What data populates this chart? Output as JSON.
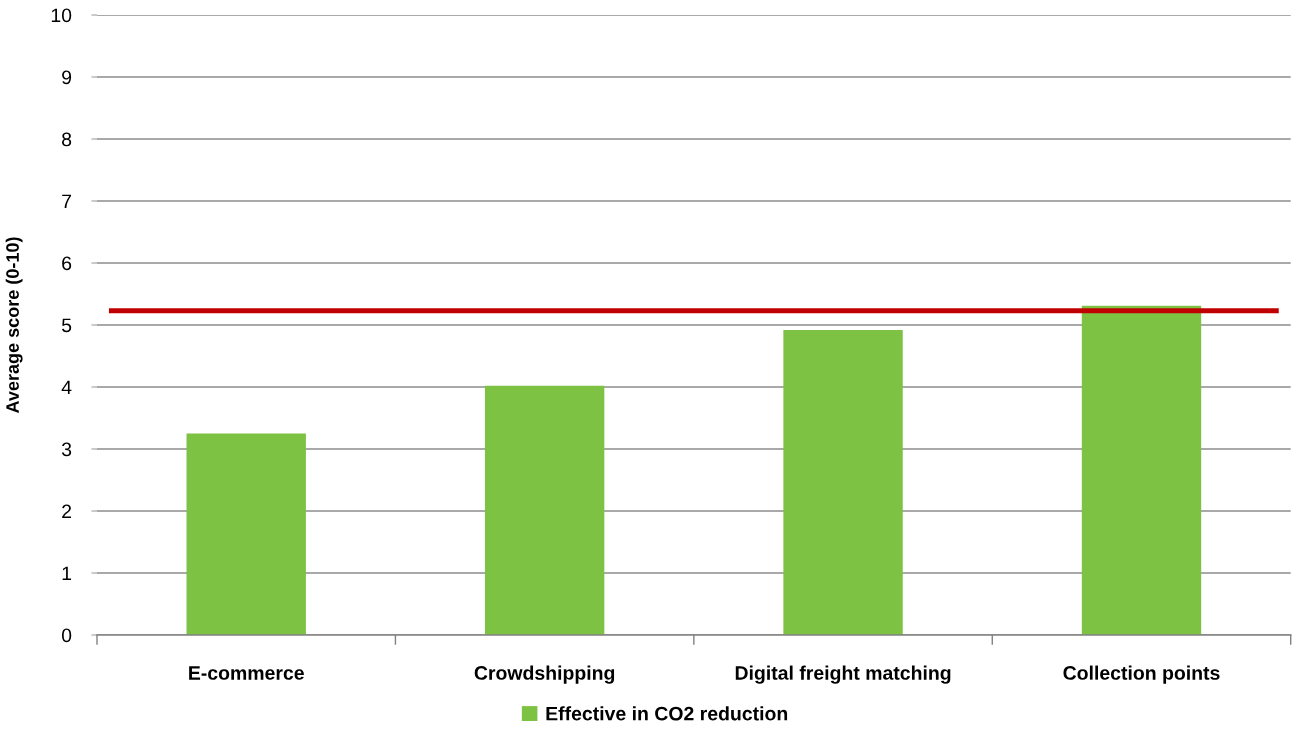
{
  "chart_data": {
    "type": "bar",
    "ylabel": "Average score (0-10)",
    "categories": [
      "E-commerce",
      "Crowdshipping",
      "Digital freight matching",
      "Collection points"
    ],
    "series": [
      {
        "name": "Effective in CO2 reduction",
        "color": "#7dc242",
        "values": [
          3.25,
          4.02,
          4.92,
          5.31
        ]
      }
    ],
    "ylim": [
      0,
      10
    ],
    "yticks": [
      0,
      1,
      2,
      3,
      4,
      5,
      6,
      7,
      8,
      9,
      10
    ],
    "grid": "y",
    "legend": "bottom",
    "ref_lines": [
      {
        "axis": "y",
        "value": 5.23,
        "color": "#c00000"
      }
    ]
  }
}
